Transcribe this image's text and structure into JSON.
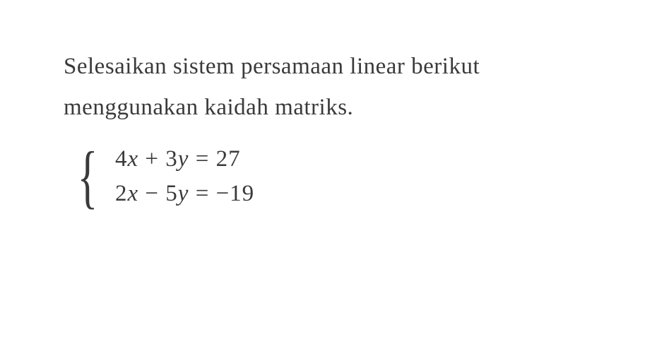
{
  "problem": {
    "line1": "Selesaikan sistem persamaan linear berikut",
    "line2": "menggunakan kaidah matriks.",
    "font_size": 33,
    "text_color": "#3a3a3a",
    "background_color": "#ffffff"
  },
  "system": {
    "equations": [
      {
        "terms": [
          {
            "coef": "4",
            "var": "x"
          },
          {
            "op": " + ",
            "coef": "3",
            "var": "y"
          }
        ],
        "rhs": "27"
      },
      {
        "terms": [
          {
            "coef": "2",
            "var": "x"
          },
          {
            "op": " − ",
            "coef": "5",
            "var": "y"
          }
        ],
        "rhs": "−19"
      }
    ],
    "brace_symbol": "{",
    "equation_font_size": 33
  }
}
